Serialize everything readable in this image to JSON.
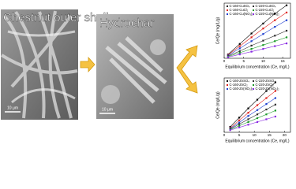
{
  "panels": {
    "raw_label": "Chestnut outer shell",
    "raw_scale": "10 μm",
    "char_label": "Hydrochar",
    "char_scale": "10 μm"
  },
  "chart_data": [
    {
      "type": "scatter",
      "x_label": "Equilibrium concentration (Ce, mg/L)",
      "y_label": "Ce/Qe (mg/L/g)",
      "xlim": [
        0,
        17
      ],
      "xticks": [
        0,
        5,
        10,
        15
      ],
      "ylim": [
        0,
        10
      ],
      "x": [
        1,
        4,
        7,
        10,
        13,
        16
      ],
      "series": [
        {
          "name": "C-160-CuSO₄",
          "color": "#000000",
          "values": [
            0.7,
            2.6,
            4.5,
            6.3,
            8.1,
            9.6
          ]
        },
        {
          "name": "C-160-CuCl₂",
          "color": "#e0201b",
          "values": [
            0.6,
            2.2,
            3.8,
            5.4,
            6.9,
            8.3
          ]
        },
        {
          "name": "C-160-Cu(NO₃)₂",
          "color": "#1f3fd0",
          "values": [
            0.5,
            1.8,
            3.1,
            4.4,
            5.7,
            6.9
          ]
        },
        {
          "name": "C-220-CuSO₄",
          "color": "#303030",
          "values": [
            0.4,
            1.3,
            2.3,
            3.2,
            4.1,
            5.0
          ]
        },
        {
          "name": "C-220-CuCl₂",
          "color": "#1a9a2a",
          "values": [
            0.3,
            1.0,
            1.7,
            2.4,
            3.1,
            3.8
          ]
        },
        {
          "name": "C-220-Cu(NO₃)₂",
          "color": "#8a2be2",
          "values": [
            0.2,
            0.7,
            1.2,
            1.7,
            2.2,
            2.7
          ]
        }
      ]
    },
    {
      "type": "scatter",
      "x_label": "Equilibrium concentration (Ce, mg/L)",
      "y_label": "Ce/Qe (mg/L/g)",
      "xlim": [
        0,
        22
      ],
      "xticks": [
        0,
        5,
        10,
        15,
        20
      ],
      "ylim": [
        0,
        10
      ],
      "x": [
        2,
        5,
        8,
        11,
        14,
        17
      ],
      "series": [
        {
          "name": "C-160-ZnSO₄",
          "color": "#000000",
          "values": [
            1.0,
            2.7,
            4.4,
            6.0,
            7.6,
            9.2
          ]
        },
        {
          "name": "C-160-ZnCl₂",
          "color": "#e0201b",
          "values": [
            0.8,
            2.2,
            3.6,
            5.0,
            6.3,
            7.6
          ]
        },
        {
          "name": "C-160-Zn(NO₃)₂",
          "color": "#1f3fd0",
          "values": [
            0.7,
            1.8,
            3.0,
            4.1,
            5.2,
            6.3
          ]
        },
        {
          "name": "C-220-ZnSO₄",
          "color": "#303030",
          "values": [
            0.6,
            1.5,
            2.4,
            3.3,
            4.2,
            5.1
          ]
        },
        {
          "name": "C-220-ZnCl₂",
          "color": "#1a9a2a",
          "values": [
            0.5,
            1.2,
            1.9,
            2.6,
            3.3,
            4.0
          ]
        },
        {
          "name": "C-220-Zn(NO₃)₂",
          "color": "#8a2be2",
          "values": [
            0.4,
            0.9,
            1.4,
            1.9,
            2.4,
            2.9
          ]
        }
      ]
    }
  ]
}
